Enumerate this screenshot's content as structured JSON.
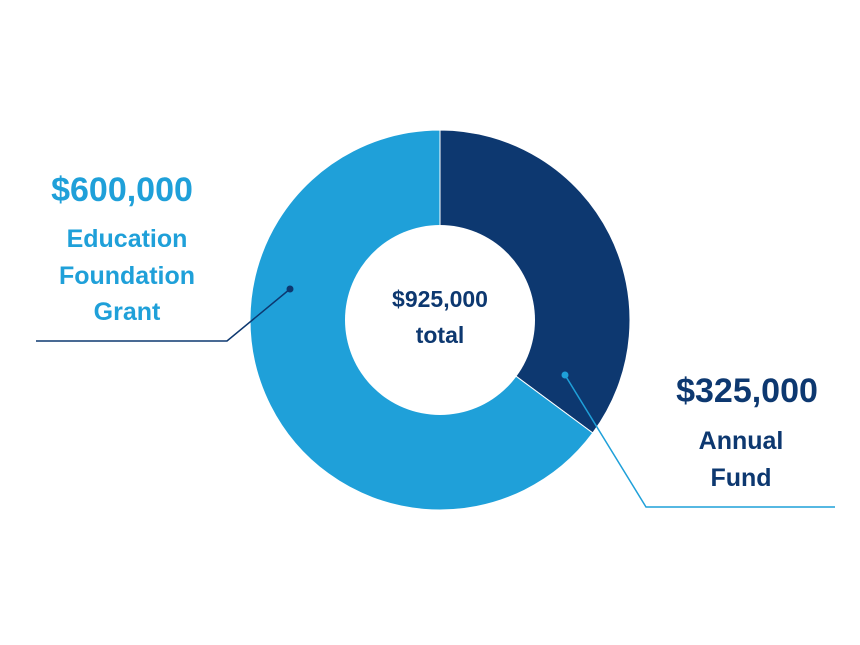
{
  "chart_data": {
    "type": "pie",
    "donut": true,
    "title": "",
    "center_label": {
      "value": "$925,000",
      "text": "total"
    },
    "total": 925000,
    "slices": [
      {
        "name": "Annual Fund",
        "value": 325000,
        "amount_label": "$325,000",
        "label_lines": [
          "Annual",
          "Fund"
        ],
        "color": "#0d3870"
      },
      {
        "name": "Education Foundation Grant",
        "value": 600000,
        "amount_label": "$600,000",
        "label_lines": [
          "Education",
          "Foundation",
          "Grant"
        ],
        "color": "#1fa0d9"
      }
    ],
    "legend": "none",
    "grid": false
  },
  "colors": {
    "dark_navy": "#0d3870",
    "light_blue": "#1fa0d9",
    "background": "#ffffff",
    "center_text": "#0d3870"
  }
}
